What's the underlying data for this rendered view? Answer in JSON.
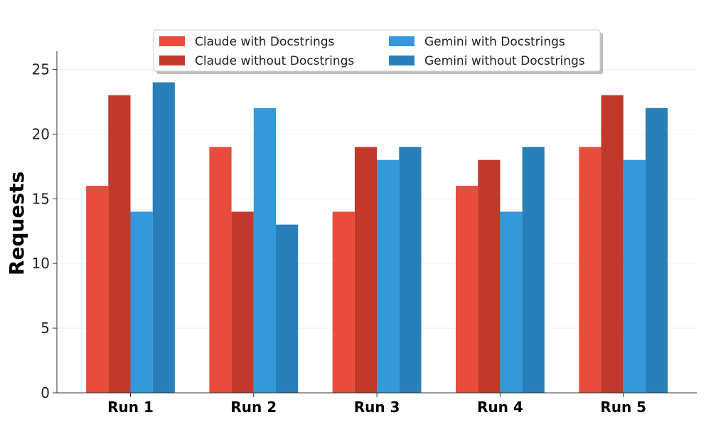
{
  "chart_data": {
    "type": "bar",
    "title": "",
    "xlabel": "",
    "ylabel": "Requests",
    "categories": [
      "Run 1",
      "Run 2",
      "Run 3",
      "Run 4",
      "Run 5"
    ],
    "series": [
      {
        "name": "Claude with Docstrings",
        "color": "#e74c3c",
        "values": [
          16,
          19,
          14,
          16,
          19
        ]
      },
      {
        "name": "Claude without Docstrings",
        "color": "#c0392b",
        "values": [
          23,
          14,
          19,
          18,
          23
        ]
      },
      {
        "name": "Gemini with Docstrings",
        "color": "#3498db",
        "values": [
          14,
          22,
          18,
          14,
          18
        ]
      },
      {
        "name": "Gemini without Docstrings",
        "color": "#2980b9",
        "values": [
          24,
          13,
          19,
          19,
          22
        ]
      }
    ],
    "ylim": [
      0,
      26.4
    ],
    "yticks": [
      0,
      5,
      10,
      15,
      20,
      25
    ],
    "grid": "horizontal, faint",
    "legend_position": "top-center, two columns, shadowed box"
  }
}
